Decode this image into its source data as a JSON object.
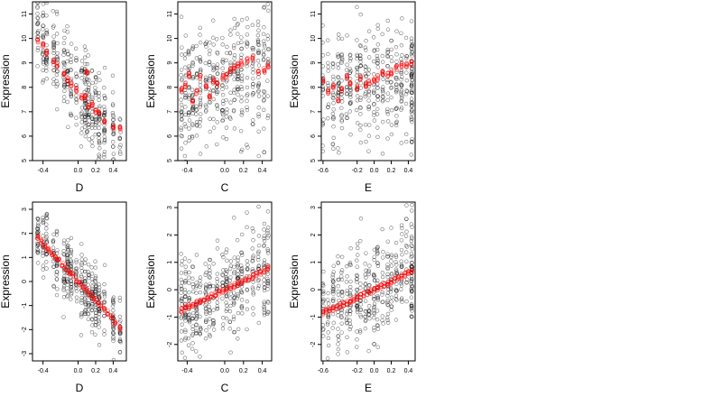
{
  "chart_data": [
    {
      "type": "scatter",
      "title": "",
      "xlabel": "D",
      "ylabel": "Expression",
      "xlim": [
        -0.52,
        0.55
      ],
      "ylim": [
        5.0,
        11.5
      ],
      "xticks": [
        -0.4,
        0.0,
        0.2,
        0.4
      ],
      "yticks": [
        5,
        6,
        7,
        8,
        9,
        10,
        11
      ],
      "xtick_labels": [
        "-0.4",
        "0.0",
        "0.2",
        "0.4"
      ],
      "ytick_labels": [
        "5",
        "6",
        "7",
        "8",
        "9",
        "10",
        "11"
      ],
      "grid": false,
      "legend": "none",
      "x_clusters": [
        -0.46,
        -0.4,
        -0.36,
        -0.28,
        -0.24,
        -0.16,
        -0.12,
        -0.08,
        -0.02,
        0.04,
        0.08,
        0.1,
        0.12,
        0.16,
        0.2,
        0.24,
        0.3,
        0.4,
        0.48
      ],
      "trend_linear": {
        "a": 8.0,
        "b": -5.0,
        "spread": 0.9
      },
      "fitted_x": [
        -0.46,
        -0.4,
        -0.36,
        -0.28,
        -0.24,
        -0.16,
        -0.12,
        -0.08,
        -0.02,
        0.04,
        0.08,
        0.1,
        0.12,
        0.16,
        0.2,
        0.24,
        0.3,
        0.4,
        0.48
      ],
      "fitted_y": [
        9.9,
        9.7,
        9.4,
        9.1,
        8.9,
        8.6,
        8.3,
        8.1,
        7.9,
        7.6,
        7.6,
        8.6,
        7.2,
        7.3,
        7.0,
        6.9,
        6.6,
        6.4,
        6.3
      ],
      "observed_point_count": 420,
      "colors": {
        "observed": "#000000",
        "fitted": "#ff0000"
      }
    },
    {
      "type": "scatter",
      "title": "",
      "xlabel": "C",
      "ylabel": "Expression",
      "xlim": [
        -0.5,
        0.5
      ],
      "ylim": [
        5.0,
        11.5
      ],
      "xticks": [
        -0.4,
        0.0,
        0.2,
        0.4
      ],
      "yticks": [
        5,
        6,
        7,
        8,
        9,
        10,
        11
      ],
      "xtick_labels": [
        "-0.4",
        "0.0",
        "0.2",
        "0.4"
      ],
      "ytick_labels": [
        "5",
        "6",
        "7",
        "8",
        "9",
        "10",
        "11"
      ],
      "grid": false,
      "legend": "none",
      "x_clusters": [
        -0.46,
        -0.42,
        -0.38,
        -0.34,
        -0.3,
        -0.26,
        -0.2,
        -0.16,
        -0.12,
        -0.08,
        -0.02,
        0.02,
        0.06,
        0.1,
        0.14,
        0.18,
        0.24,
        0.3,
        0.36,
        0.42,
        0.46
      ],
      "trend_linear": {
        "a": 8.3,
        "b": 1.2,
        "spread": 1.3
      },
      "fitted_x": [
        -0.46,
        -0.42,
        -0.38,
        -0.34,
        -0.3,
        -0.26,
        -0.2,
        -0.16,
        -0.12,
        -0.08,
        -0.02,
        0.02,
        0.06,
        0.1,
        0.14,
        0.18,
        0.24,
        0.3,
        0.36,
        0.42,
        0.46
      ],
      "fitted_y": [
        7.9,
        8.1,
        8.5,
        7.4,
        7.8,
        8.4,
        8.0,
        7.6,
        8.3,
        8.1,
        8.4,
        8.5,
        8.7,
        8.8,
        8.9,
        9.0,
        9.1,
        9.2,
        8.6,
        8.7,
        8.9
      ],
      "observed_point_count": 420,
      "colors": {
        "observed": "#000000",
        "fitted": "#ff0000"
      }
    },
    {
      "type": "scatter",
      "title": "",
      "xlabel": "E",
      "ylabel": "Expression",
      "xlim": [
        -0.62,
        0.48
      ],
      "ylim": [
        5.0,
        11.5
      ],
      "xticks": [
        -0.6,
        -0.2,
        0.0,
        0.2,
        0.4
      ],
      "yticks": [
        5,
        6,
        7,
        8,
        9,
        10,
        11
      ],
      "xtick_labels": [
        "-0.6",
        "-0.2",
        "0.0",
        "0.2",
        "0.4"
      ],
      "ytick_labels": [
        "5",
        "6",
        "7",
        "8",
        "9",
        "10",
        "11"
      ],
      "grid": false,
      "legend": "none",
      "x_clusters": [
        -0.6,
        -0.54,
        -0.48,
        -0.42,
        -0.38,
        -0.32,
        -0.28,
        -0.2,
        -0.16,
        -0.1,
        -0.06,
        0.0,
        0.04,
        0.1,
        0.16,
        0.2,
        0.26,
        0.32,
        0.38,
        0.44,
        0.44,
        0.44
      ],
      "trend_linear": {
        "a": 8.1,
        "b": 0.5,
        "spread": 1.2
      },
      "fitted_x": [
        -0.6,
        -0.54,
        -0.48,
        -0.42,
        -0.38,
        -0.32,
        -0.28,
        -0.2,
        -0.16,
        -0.1,
        -0.06,
        0.0,
        0.04,
        0.1,
        0.16,
        0.2,
        0.26,
        0.32,
        0.38,
        0.44
      ],
      "fitted_y": [
        8.3,
        7.8,
        8.0,
        7.5,
        7.9,
        8.4,
        8.2,
        8.0,
        8.4,
        8.1,
        8.2,
        8.3,
        8.4,
        8.6,
        8.5,
        8.6,
        8.8,
        8.9,
        8.9,
        9.0
      ],
      "observed_point_count": 420,
      "colors": {
        "observed": "#000000",
        "fitted": "#ff0000"
      }
    },
    {
      "type": "scatter",
      "title": "",
      "xlabel": "D",
      "ylabel": "Expression",
      "xlim": [
        -0.52,
        0.55
      ],
      "ylim": [
        -3.3,
        3.3
      ],
      "xticks": [
        -0.4,
        0.0,
        0.2,
        0.4
      ],
      "yticks": [
        -3,
        -2,
        -1,
        0,
        1,
        2,
        3
      ],
      "xtick_labels": [
        "-0.4",
        "0.0",
        "0.2",
        "0.4"
      ],
      "ytick_labels": [
        "-3",
        "-2",
        "-1",
        "0",
        "1",
        "2",
        "3"
      ],
      "grid": false,
      "legend": "none",
      "x_clusters": [
        -0.46,
        -0.4,
        -0.36,
        -0.28,
        -0.24,
        -0.16,
        -0.12,
        -0.08,
        -0.02,
        0.04,
        0.08,
        0.12,
        0.16,
        0.2,
        0.24,
        0.3,
        0.4,
        0.48
      ],
      "trend_linear": {
        "a": 0.0,
        "b": -4.0,
        "spread": 0.7
      },
      "fitted_x": [
        -0.46,
        -0.42,
        -0.38,
        -0.34,
        -0.3,
        -0.26,
        -0.22,
        -0.18,
        -0.14,
        -0.1,
        -0.06,
        -0.02,
        0.02,
        0.06,
        0.1,
        0.14,
        0.18,
        0.22,
        0.26,
        0.3,
        0.34,
        0.38,
        0.42,
        0.48
      ],
      "fitted_y": [
        1.85,
        1.7,
        1.5,
        1.3,
        1.15,
        1.0,
        0.85,
        0.7,
        0.55,
        0.4,
        0.25,
        0.05,
        -0.1,
        -0.25,
        -0.4,
        -0.55,
        -0.7,
        -0.85,
        -1.0,
        -1.15,
        -1.3,
        -1.5,
        -1.7,
        -1.95
      ],
      "observed_point_count": 420,
      "colors": {
        "observed": "#000000",
        "fitted": "#ff0000"
      }
    },
    {
      "type": "scatter",
      "title": "",
      "xlabel": "C",
      "ylabel": "Expression",
      "xlim": [
        -0.5,
        0.5
      ],
      "ylim": [
        -2.6,
        3.2
      ],
      "xticks": [
        -0.4,
        0.0,
        0.2,
        0.4
      ],
      "yticks": [
        -2,
        -1,
        0,
        1,
        2,
        3
      ],
      "xtick_labels": [
        "-0.4",
        "0.0",
        "0.2",
        "0.4"
      ],
      "ytick_labels": [
        "-2",
        "-1",
        "0",
        "1",
        "2",
        "3"
      ],
      "grid": false,
      "legend": "none",
      "x_clusters": [
        -0.46,
        -0.42,
        -0.38,
        -0.34,
        -0.3,
        -0.26,
        -0.2,
        -0.16,
        -0.12,
        -0.08,
        -0.02,
        0.02,
        0.06,
        0.1,
        0.14,
        0.18,
        0.24,
        0.3,
        0.36,
        0.42,
        0.46
      ],
      "trend_linear": {
        "a": 0.0,
        "b": 1.6,
        "spread": 0.85
      },
      "fitted_x": [
        -0.46,
        -0.42,
        -0.38,
        -0.34,
        -0.3,
        -0.26,
        -0.22,
        -0.18,
        -0.14,
        -0.1,
        -0.06,
        -0.02,
        0.02,
        0.06,
        0.1,
        0.14,
        0.18,
        0.22,
        0.26,
        0.3,
        0.34,
        0.38,
        0.42,
        0.46
      ],
      "fitted_y": [
        -0.75,
        -0.68,
        -0.6,
        -0.55,
        -0.48,
        -0.42,
        -0.36,
        -0.3,
        -0.22,
        -0.16,
        -0.1,
        -0.03,
        0.03,
        0.1,
        0.16,
        0.22,
        0.29,
        0.35,
        0.41,
        0.48,
        0.55,
        0.62,
        0.7,
        0.8
      ],
      "observed_point_count": 420,
      "colors": {
        "observed": "#000000",
        "fitted": "#ff0000"
      }
    },
    {
      "type": "scatter",
      "title": "",
      "xlabel": "E",
      "ylabel": "Expression",
      "xlim": [
        -0.62,
        0.48
      ],
      "ylim": [
        -2.6,
        3.2
      ],
      "xticks": [
        -0.6,
        -0.2,
        0.0,
        0.2,
        0.4
      ],
      "yticks": [
        -2,
        -1,
        0,
        1,
        2,
        3
      ],
      "xtick_labels": [
        "-0.6",
        "-0.2",
        "0.0",
        "0.2",
        "0.4"
      ],
      "ytick_labels": [
        "-2",
        "-1",
        "0",
        "1",
        "2",
        "3"
      ],
      "grid": false,
      "legend": "none",
      "x_clusters": [
        -0.6,
        -0.54,
        -0.48,
        -0.42,
        -0.38,
        -0.32,
        -0.28,
        -0.2,
        -0.16,
        -0.1,
        -0.06,
        0.0,
        0.04,
        0.1,
        0.16,
        0.2,
        0.26,
        0.32,
        0.38,
        0.44,
        0.44,
        0.44
      ],
      "trend_linear": {
        "a": 0.0,
        "b": 1.5,
        "spread": 0.85
      },
      "fitted_x": [
        -0.6,
        -0.56,
        -0.52,
        -0.48,
        -0.44,
        -0.4,
        -0.36,
        -0.32,
        -0.28,
        -0.24,
        -0.2,
        -0.16,
        -0.12,
        -0.08,
        -0.04,
        0.0,
        0.04,
        0.08,
        0.12,
        0.16,
        0.2,
        0.24,
        0.28,
        0.32,
        0.36,
        0.4,
        0.44
      ],
      "fitted_y": [
        -0.85,
        -0.8,
        -0.75,
        -0.7,
        -0.64,
        -0.58,
        -0.52,
        -0.47,
        -0.41,
        -0.35,
        -0.3,
        -0.24,
        -0.18,
        -0.12,
        -0.06,
        0.0,
        0.06,
        0.12,
        0.18,
        0.24,
        0.3,
        0.36,
        0.42,
        0.48,
        0.54,
        0.6,
        0.7
      ],
      "observed_point_count": 420,
      "colors": {
        "observed": "#000000",
        "fitted": "#ff0000"
      }
    }
  ]
}
